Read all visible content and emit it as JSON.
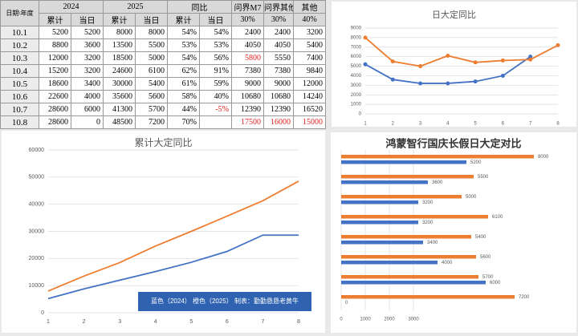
{
  "table": {
    "header_top": [
      "日期\\年度",
      "2024",
      "2025",
      "同比",
      "问界M7",
      "问界其他",
      "其他"
    ],
    "header_sub": [
      "累计",
      "当日",
      "累计",
      "当日",
      "累计",
      "当日",
      "30%",
      "30%",
      "40%"
    ],
    "rows": [
      [
        "10.1",
        "5200",
        "5200",
        "8000",
        "8000",
        "54%",
        "54%",
        "2400",
        "2400",
        "3200"
      ],
      [
        "10.2",
        "8800",
        "3600",
        "13500",
        "5500",
        "53%",
        "53%",
        "4050",
        "4050",
        "5400"
      ],
      [
        "10.3",
        "12000",
        "3200",
        "18500",
        "5000",
        "54%",
        "56%",
        {
          "text": "5800",
          "color": "#e02020"
        },
        "5550",
        "7400"
      ],
      [
        "10.4",
        "15200",
        "3200",
        "24600",
        "6100",
        "62%",
        "91%",
        "7380",
        "7380",
        "9840"
      ],
      [
        "10.5",
        "18600",
        "3400",
        "30000",
        "5400",
        "61%",
        "59%",
        "9000",
        "9000",
        "12000"
      ],
      [
        "10.6",
        "22600",
        "4000",
        "35600",
        "5600",
        "58%",
        "40%",
        "10680",
        "10680",
        "14240"
      ],
      [
        "10.7",
        "28600",
        "6000",
        "41300",
        "5700",
        "44%",
        {
          "text": "-5%",
          "color": "#e02020"
        },
        "12390",
        "12390",
        "16520"
      ],
      [
        "10.8",
        "28600",
        "0",
        "48500",
        "7200",
        "70%",
        null,
        {
          "text": "17500",
          "color": "#e02020"
        },
        {
          "text": "16000",
          "color": "#e02020"
        },
        {
          "text": "15000",
          "color": "#e02020"
        }
      ]
    ]
  },
  "chart_data": [
    {
      "type": "line",
      "title": "日大定同比",
      "x": [
        1,
        2,
        3,
        4,
        5,
        6,
        7,
        8
      ],
      "xticks": [
        1,
        2,
        3,
        4,
        5,
        6,
        7,
        8
      ],
      "ylim": [
        0,
        9000
      ],
      "yticks": [
        0,
        1000,
        2000,
        3000,
        4000,
        5000,
        6000,
        7000,
        8000,
        9000
      ],
      "grid": true,
      "series": [
        {
          "color": "#4472c4",
          "values": [
            5200,
            3600,
            3200,
            3200,
            3400,
            4000,
            6000,
            null
          ]
        },
        {
          "color": "#ed7d31",
          "values": [
            8000,
            5500,
            5000,
            6100,
            5400,
            5600,
            5700,
            7200
          ]
        }
      ]
    },
    {
      "type": "line",
      "title": "累计大定同比",
      "annotation": "蓝色（2024） 橙色（2025） 制表：勤勤恳恳老黄牛",
      "x": [
        1,
        2,
        3,
        4,
        5,
        6,
        7,
        8
      ],
      "xticks": [
        1,
        2,
        3,
        4,
        5,
        6,
        7,
        8
      ],
      "ylim": [
        0,
        60000
      ],
      "yticks": [
        0,
        10000,
        20000,
        30000,
        40000,
        50000,
        60000
      ],
      "grid": true,
      "series": [
        {
          "color": "#4472c4",
          "values": [
            5200,
            8800,
            12000,
            15200,
            18600,
            22600,
            28600,
            28600
          ]
        },
        {
          "color": "#ed7d31",
          "values": [
            8000,
            13500,
            18500,
            24600,
            30000,
            35600,
            41300,
            48500
          ]
        }
      ]
    },
    {
      "type": "hbar",
      "title": "鸿蒙智行国庆长假日大定对比",
      "xlim": [
        0,
        9000
      ],
      "xticks": [
        0,
        1000,
        2000,
        3000
      ],
      "grid": true,
      "series": [
        {
          "color": "#ed7d31",
          "values": [
            8000,
            5500,
            5000,
            6100,
            5400,
            5600,
            5700,
            7200
          ]
        },
        {
          "color": "#4472c4",
          "values": [
            5200,
            3600,
            3200,
            3200,
            3400,
            4000,
            6000,
            0
          ]
        }
      ]
    }
  ]
}
